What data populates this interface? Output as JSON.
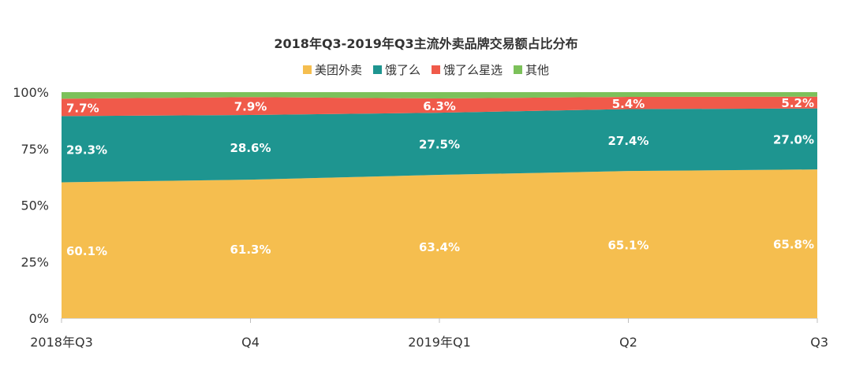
{
  "chart_data": {
    "type": "area",
    "stacked": "percent",
    "title": "2018年Q3-2019年Q3主流外卖品牌交易额占比分布",
    "categories": [
      "2018年Q3",
      "Q4",
      "2019年Q1",
      "Q2",
      "Q3"
    ],
    "series": [
      {
        "name": "美团外卖",
        "color": "#F5BE4F",
        "values": [
          60.1,
          61.3,
          63.4,
          65.1,
          65.8
        ],
        "labels": [
          "60.1%",
          "61.3%",
          "63.4%",
          "65.1%",
          "65.8%"
        ]
      },
      {
        "name": "饿了么",
        "color": "#1E9590",
        "values": [
          29.3,
          28.6,
          27.5,
          27.4,
          27.0
        ],
        "labels": [
          "29.3%",
          "28.6%",
          "27.5%",
          "27.4%",
          "27.0%"
        ]
      },
      {
        "name": "饿了么星选",
        "color": "#F05A4A",
        "values": [
          7.7,
          7.9,
          6.3,
          5.4,
          5.2
        ],
        "labels": [
          "7.7%",
          "7.9%",
          "6.3%",
          "5.4%",
          "5.2%"
        ]
      },
      {
        "name": "其他",
        "color": "#7CC15A",
        "values": [
          2.9,
          2.2,
          2.8,
          2.1,
          2.0
        ],
        "labels": []
      }
    ],
    "ylim": [
      0,
      100
    ],
    "yticks": [
      "0%",
      "25%",
      "50%",
      "75%",
      "100%"
    ],
    "legend_position": "top-center",
    "grid": false
  }
}
